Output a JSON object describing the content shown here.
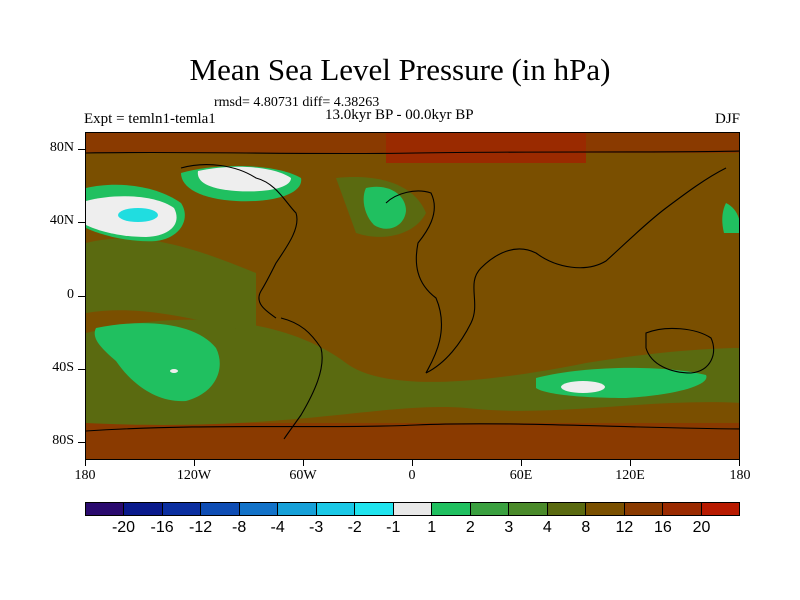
{
  "title": "Mean Sea Level Pressure (in hPa)",
  "stats": "rmsd= 4.80731 diff= 4.38263",
  "period": "13.0kyr BP - 00.0kyr BP",
  "experiment": "Expt = temln1-temla1",
  "season": "DJF",
  "y_axis": {
    "labels": [
      "80N",
      "40N",
      "0",
      "40S",
      "80S"
    ],
    "lats": [
      80,
      40,
      0,
      -40,
      -80
    ]
  },
  "x_axis": {
    "labels": [
      "180",
      "120W",
      "60W",
      "0",
      "60E",
      "120E",
      "180"
    ],
    "lons": [
      -180,
      -120,
      -60,
      0,
      60,
      120,
      180
    ]
  },
  "colorbar": {
    "labels": [
      "-20",
      "-16",
      "-12",
      "-8",
      "-4",
      "-3",
      "-2",
      "-1",
      "1",
      "2",
      "3",
      "4",
      "8",
      "12",
      "16",
      "20"
    ],
    "colors": [
      "#2a0a6e",
      "#0a1a8c",
      "#0b2fa0",
      "#0e4db4",
      "#1272c8",
      "#16a0d8",
      "#1ac8e6",
      "#20e4ee",
      "#e8e8e8",
      "#20c060",
      "#3aa040",
      "#4a8a2a",
      "#5a6a10",
      "#7a5000",
      "#8a3a00",
      "#9a2a00",
      "#b81a00"
    ]
  },
  "colors": {
    "background_anomaly": "#7a4f00",
    "land_fill": "#6e4c06",
    "ocean_mid": "#5a6a10",
    "green": "#20c060",
    "white": "#eeeeee",
    "cyan": "#20dde0",
    "high_red": "#9a2a00"
  }
}
